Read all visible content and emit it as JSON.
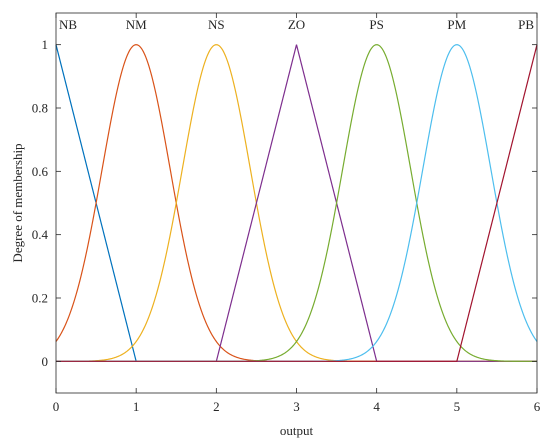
{
  "chart_data": {
    "type": "line",
    "title": "",
    "xlabel": "output",
    "ylabel": "Degree of membership",
    "xlim": [
      0,
      6
    ],
    "ylim": [
      -0.1,
      1.1
    ],
    "xticks": [
      "0",
      "1",
      "2",
      "3",
      "4",
      "5",
      "6"
    ],
    "yticks": [
      "0",
      "0.2",
      "0.4",
      "0.6",
      "0.8",
      "1"
    ],
    "grid": false,
    "box": true,
    "series": [
      {
        "name": "NB",
        "shape": "trimf",
        "params": [
          0,
          0,
          1
        ],
        "color": "#0072BD"
      },
      {
        "name": "NM",
        "shape": "gaussmf",
        "center": 1,
        "sigma": 0.4247,
        "color": "#D95319"
      },
      {
        "name": "NS",
        "shape": "gaussmf",
        "center": 2,
        "sigma": 0.4247,
        "color": "#EDB120"
      },
      {
        "name": "ZO",
        "shape": "trimf",
        "params": [
          2,
          3,
          4
        ],
        "color": "#7E2F8E"
      },
      {
        "name": "PS",
        "shape": "gaussmf",
        "center": 4,
        "sigma": 0.4247,
        "color": "#77AC30"
      },
      {
        "name": "PM",
        "shape": "gaussmf",
        "center": 5,
        "sigma": 0.4247,
        "color": "#4DBEEE"
      },
      {
        "name": "PB",
        "shape": "trimf",
        "params": [
          5,
          6,
          6
        ],
        "color": "#A2142F"
      }
    ]
  }
}
